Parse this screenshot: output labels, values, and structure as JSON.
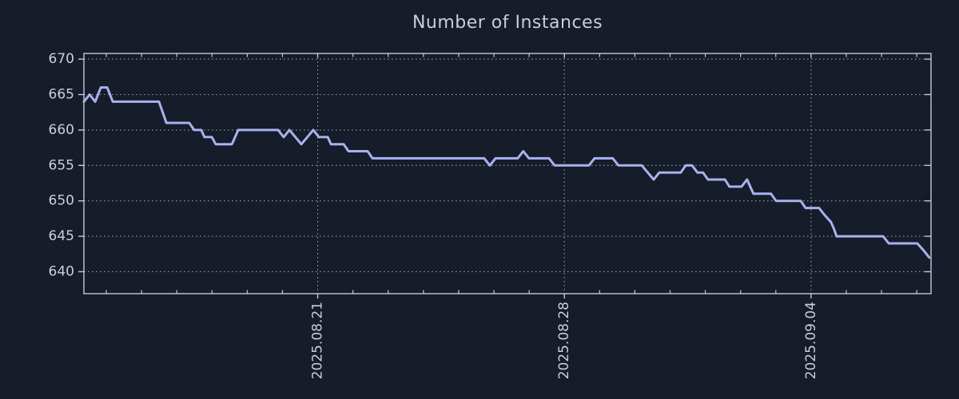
{
  "window": {
    "background": "#161c29"
  },
  "style": {
    "background": "#161c29",
    "frame_color": "#c3c9d2",
    "grid_color": "#a7adb6",
    "text_color": "#c9cfd7",
    "line_color": "#a8b1f0",
    "tick_font_size": 17,
    "title_font_size": 22
  },
  "chart_data": {
    "type": "line",
    "title": "Number of Instances",
    "xlabel": "",
    "ylabel": "",
    "legend": null,
    "grid": {
      "style": "dotted",
      "horizontal": true,
      "vertical": true
    },
    "x_axis": {
      "kind": "time",
      "unit": "days-from-left-edge",
      "range": [
        0,
        24.04
      ],
      "major_ticks": [
        {
          "t": 6.635,
          "label": "2025.08.21"
        },
        {
          "t": 13.635,
          "label": "2025.08.28"
        },
        {
          "t": 20.635,
          "label": "2025.09.04"
        }
      ],
      "minor_ticks": {
        "first": 0.635,
        "step": 1.0
      },
      "tick_label_rotation": -90
    },
    "y_axis": {
      "range": [
        636.9,
        670.8
      ],
      "ticks": [
        640,
        645,
        650,
        655,
        660,
        665,
        670
      ]
    },
    "series": [
      {
        "name": "instances",
        "color": "#a8b1f0",
        "points": [
          [
            0.0,
            664
          ],
          [
            0.16,
            665
          ],
          [
            0.32,
            664
          ],
          [
            0.48,
            666
          ],
          [
            0.66,
            666
          ],
          [
            0.82,
            664
          ],
          [
            2.13,
            664
          ],
          [
            2.34,
            661
          ],
          [
            2.99,
            661
          ],
          [
            3.13,
            660
          ],
          [
            3.33,
            660
          ],
          [
            3.42,
            659
          ],
          [
            3.63,
            659
          ],
          [
            3.74,
            658
          ],
          [
            4.2,
            658
          ],
          [
            4.38,
            660
          ],
          [
            5.51,
            660
          ],
          [
            5.67,
            659
          ],
          [
            5.83,
            660
          ],
          [
            6.17,
            658
          ],
          [
            6.51,
            660
          ],
          [
            6.67,
            659
          ],
          [
            6.92,
            659
          ],
          [
            7.01,
            658
          ],
          [
            7.37,
            658
          ],
          [
            7.51,
            657
          ],
          [
            8.05,
            657
          ],
          [
            8.19,
            656
          ],
          [
            11.36,
            656
          ],
          [
            11.52,
            655
          ],
          [
            11.68,
            656
          ],
          [
            12.31,
            656
          ],
          [
            12.47,
            657
          ],
          [
            12.63,
            656
          ],
          [
            13.2,
            656
          ],
          [
            13.36,
            655
          ],
          [
            14.33,
            655
          ],
          [
            14.49,
            656
          ],
          [
            15.01,
            656
          ],
          [
            15.17,
            655
          ],
          [
            15.83,
            655
          ],
          [
            16.17,
            653
          ],
          [
            16.33,
            654
          ],
          [
            16.94,
            654
          ],
          [
            17.08,
            655
          ],
          [
            17.26,
            655
          ],
          [
            17.41,
            654
          ],
          [
            17.57,
            654
          ],
          [
            17.71,
            653
          ],
          [
            18.19,
            653
          ],
          [
            18.32,
            652
          ],
          [
            18.66,
            652
          ],
          [
            18.82,
            653
          ],
          [
            19.0,
            651
          ],
          [
            19.5,
            651
          ],
          [
            19.64,
            650
          ],
          [
            20.34,
            650
          ],
          [
            20.48,
            649
          ],
          [
            20.86,
            649
          ],
          [
            21.02,
            648
          ],
          [
            21.2,
            647
          ],
          [
            21.29,
            646
          ],
          [
            21.36,
            645
          ],
          [
            22.68,
            645
          ],
          [
            22.84,
            644
          ],
          [
            23.65,
            644
          ],
          [
            23.83,
            643
          ],
          [
            23.99,
            642
          ]
        ]
      }
    ]
  }
}
